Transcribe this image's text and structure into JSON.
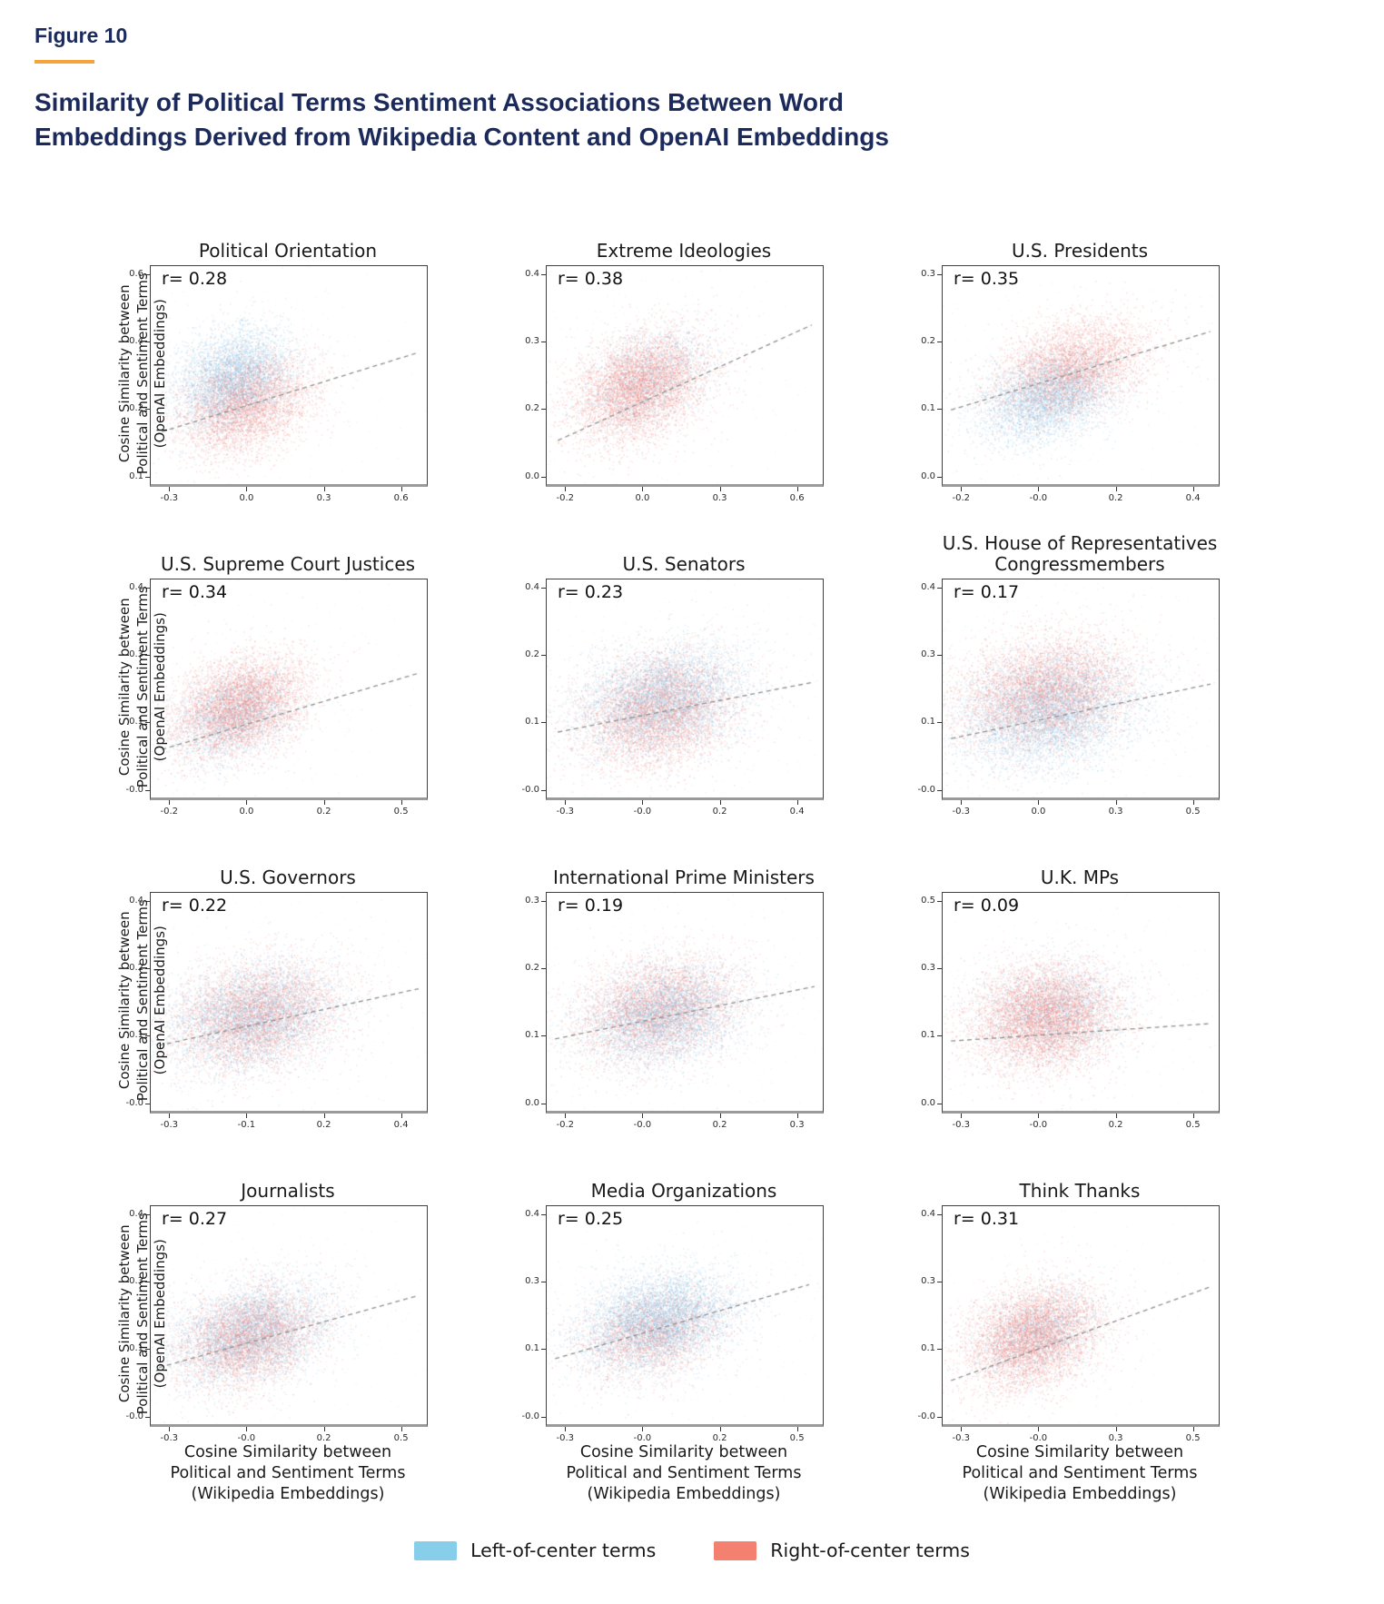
{
  "figure_label": "Figure 10",
  "title_lines": [
    "Similarity of Political Terms Sentiment Associations Between Word",
    "Embeddings Derived from Wikipedia Content and OpenAI Embeddings"
  ],
  "colors": {
    "accent_orange": "#f5a33c",
    "title_navy": "#1b2a5a",
    "left_blue": "#87CEEB",
    "right_red": "#F4806F",
    "trend_gray": "#8f8f8f",
    "point_blue": "125,186,228",
    "point_red": "241,126,117"
  },
  "legend": [
    {
      "label": "Left-of-center terms",
      "color_key": "left_blue"
    },
    {
      "label": "Right-of-center terms",
      "color_key": "right_red"
    }
  ],
  "shared_axes": {
    "y_label": "Cosine Similarity between\nPolitical and Sentiment Terms\n(OpenAI Embeddings)",
    "x_label": "Cosine Similarity between\nPolitical and Sentiment Terms\n(Wikipedia Embeddings)"
  },
  "chart_data": [
    {
      "type": "scatter",
      "title": "Political Orientation",
      "r": 0.28,
      "r_label": "r= 0.28",
      "x_ticks": [
        "-0.3",
        "0.0",
        "0.3",
        "0.6"
      ],
      "y_ticks": [
        "0.6",
        "0.4",
        "0.2",
        "0.1"
      ],
      "series": [
        {
          "name": "Left-of-center terms",
          "n": 4500,
          "cx": 0.3,
          "cy": 0.52,
          "sx": 0.105,
          "sy": 0.115
        },
        {
          "name": "Right-of-center terms",
          "n": 4500,
          "cx": 0.34,
          "cy": 0.63,
          "sx": 0.12,
          "sy": 0.115
        }
      ],
      "trend": {
        "x1": 0.04,
        "y1": 0.76,
        "x2": 0.96,
        "y2": 0.4
      }
    },
    {
      "type": "scatter",
      "title": "Extreme Ideologies",
      "r": 0.38,
      "r_label": "r= 0.38",
      "x_ticks": [
        "-0.2",
        "0.0",
        "0.3",
        "0.6"
      ],
      "y_ticks": [
        "0.4",
        "0.3",
        "0.2",
        "0.0"
      ],
      "series": [
        {
          "name": "Left-of-center terms",
          "n": 2000,
          "cx": 0.36,
          "cy": 0.52,
          "sx": 0.11,
          "sy": 0.11
        },
        {
          "name": "Right-of-center terms",
          "n": 5500,
          "cx": 0.34,
          "cy": 0.55,
          "sx": 0.12,
          "sy": 0.12
        }
      ],
      "trend": {
        "x1": 0.04,
        "y1": 0.8,
        "x2": 0.96,
        "y2": 0.27
      }
    },
    {
      "type": "scatter",
      "title": "U.S. Presidents",
      "r": 0.35,
      "r_label": "r= 0.35",
      "x_ticks": [
        "-0.2",
        "-0.0",
        "0.2",
        "0.4"
      ],
      "y_ticks": [
        "0.3",
        "0.2",
        "0.1",
        "0.0"
      ],
      "series": [
        {
          "name": "Left-of-center terms",
          "n": 4200,
          "cx": 0.38,
          "cy": 0.6,
          "sx": 0.12,
          "sy": 0.1
        },
        {
          "name": "Right-of-center terms",
          "n": 4500,
          "cx": 0.46,
          "cy": 0.47,
          "sx": 0.14,
          "sy": 0.11
        }
      ],
      "trend": {
        "x1": 0.03,
        "y1": 0.66,
        "x2": 0.97,
        "y2": 0.3
      }
    },
    {
      "type": "scatter",
      "title": "U.S. Supreme Court Justices",
      "r": 0.34,
      "r_label": "r= 0.34",
      "x_ticks": [
        "-0.2",
        "0.0",
        "0.2",
        "0.5"
      ],
      "y_ticks": [
        "0.4",
        "0.3",
        "0.1",
        "-0.0"
      ],
      "series": [
        {
          "name": "Left-of-center terms",
          "n": 2600,
          "cx": 0.3,
          "cy": 0.62,
          "sx": 0.11,
          "sy": 0.1
        },
        {
          "name": "Right-of-center terms",
          "n": 5200,
          "cx": 0.32,
          "cy": 0.58,
          "sx": 0.12,
          "sy": 0.11
        }
      ],
      "trend": {
        "x1": 0.04,
        "y1": 0.78,
        "x2": 0.97,
        "y2": 0.43
      }
    },
    {
      "type": "scatter",
      "title": "U.S. Senators",
      "r": 0.23,
      "r_label": "r= 0.23",
      "x_ticks": [
        "-0.3",
        "-0.0",
        "0.2",
        "0.4"
      ],
      "y_ticks": [
        "0.4",
        "0.2",
        "0.1",
        "-0.0"
      ],
      "series": [
        {
          "name": "Left-of-center terms",
          "n": 5200,
          "cx": 0.42,
          "cy": 0.55,
          "sx": 0.15,
          "sy": 0.12
        },
        {
          "name": "Right-of-center terms",
          "n": 5200,
          "cx": 0.4,
          "cy": 0.6,
          "sx": 0.14,
          "sy": 0.13
        }
      ],
      "trend": {
        "x1": 0.04,
        "y1": 0.7,
        "x2": 0.97,
        "y2": 0.47
      }
    },
    {
      "type": "scatter",
      "title": "U.S. House of Representatives\nCongressmembers",
      "r": 0.17,
      "r_label": "r= 0.17",
      "x_ticks": [
        "-0.3",
        "0.0",
        "0.3",
        "0.5"
      ],
      "y_ticks": [
        "0.4",
        "0.3",
        "0.1",
        "-0.0"
      ],
      "series": [
        {
          "name": "Left-of-center terms",
          "n": 5800,
          "cx": 0.38,
          "cy": 0.6,
          "sx": 0.16,
          "sy": 0.13
        },
        {
          "name": "Right-of-center terms",
          "n": 5800,
          "cx": 0.37,
          "cy": 0.52,
          "sx": 0.16,
          "sy": 0.13
        }
      ],
      "trend": {
        "x1": 0.03,
        "y1": 0.73,
        "x2": 0.97,
        "y2": 0.48
      }
    },
    {
      "type": "scatter",
      "title": "U.S. Governors",
      "r": 0.22,
      "r_label": "r= 0.22",
      "x_ticks": [
        "-0.3",
        "-0.1",
        "0.2",
        "0.4"
      ],
      "y_ticks": [
        "0.4",
        "0.2",
        "0.1",
        "-0.0"
      ],
      "series": [
        {
          "name": "Left-of-center terms",
          "n": 4600,
          "cx": 0.37,
          "cy": 0.57,
          "sx": 0.15,
          "sy": 0.12
        },
        {
          "name": "Right-of-center terms",
          "n": 5000,
          "cx": 0.38,
          "cy": 0.56,
          "sx": 0.15,
          "sy": 0.12
        }
      ],
      "trend": {
        "x1": 0.03,
        "y1": 0.7,
        "x2": 0.97,
        "y2": 0.44
      }
    },
    {
      "type": "scatter",
      "title": "International Prime Ministers",
      "r": 0.19,
      "r_label": "r= 0.19",
      "x_ticks": [
        "-0.2",
        "-0.0",
        "0.2",
        "0.3"
      ],
      "y_ticks": [
        "0.3",
        "0.2",
        "0.1",
        "0.0"
      ],
      "series": [
        {
          "name": "Left-of-center terms",
          "n": 4600,
          "cx": 0.42,
          "cy": 0.56,
          "sx": 0.14,
          "sy": 0.11
        },
        {
          "name": "Right-of-center terms",
          "n": 4600,
          "cx": 0.4,
          "cy": 0.53,
          "sx": 0.15,
          "sy": 0.12
        }
      ],
      "trend": {
        "x1": 0.03,
        "y1": 0.67,
        "x2": 0.97,
        "y2": 0.43
      }
    },
    {
      "type": "scatter",
      "title": "U.K. MPs",
      "r": 0.09,
      "r_label": "r= 0.09",
      "x_ticks": [
        "-0.3",
        "-0.0",
        "0.2",
        "0.5"
      ],
      "y_ticks": [
        "0.5",
        "0.3",
        "0.1",
        "0.0"
      ],
      "series": [
        {
          "name": "Left-of-center terms",
          "n": 2600,
          "cx": 0.4,
          "cy": 0.55,
          "sx": 0.13,
          "sy": 0.11
        },
        {
          "name": "Right-of-center terms",
          "n": 6200,
          "cx": 0.37,
          "cy": 0.57,
          "sx": 0.13,
          "sy": 0.12
        }
      ],
      "trend": {
        "x1": 0.03,
        "y1": 0.68,
        "x2": 0.97,
        "y2": 0.6
      }
    },
    {
      "type": "scatter",
      "title": "Journalists",
      "r": 0.27,
      "r_label": "r= 0.27",
      "x_ticks": [
        "-0.3",
        "-0.0",
        "0.2",
        "0.5"
      ],
      "y_ticks": [
        "0.4",
        "0.3",
        "0.1",
        "-0.0"
      ],
      "series": [
        {
          "name": "Left-of-center terms",
          "n": 4600,
          "cx": 0.36,
          "cy": 0.58,
          "sx": 0.14,
          "sy": 0.11
        },
        {
          "name": "Right-of-center terms",
          "n": 4600,
          "cx": 0.35,
          "cy": 0.6,
          "sx": 0.13,
          "sy": 0.11
        }
      ],
      "trend": {
        "x1": 0.03,
        "y1": 0.74,
        "x2": 0.97,
        "y2": 0.41
      }
    },
    {
      "type": "scatter",
      "title": "Media Organizations",
      "r": 0.25,
      "r_label": "r= 0.25",
      "x_ticks": [
        "-0.3",
        "-0.0",
        "0.2",
        "0.5"
      ],
      "y_ticks": [
        "0.4",
        "0.3",
        "0.1",
        "-0.0"
      ],
      "series": [
        {
          "name": "Left-of-center terms",
          "n": 5600,
          "cx": 0.4,
          "cy": 0.52,
          "sx": 0.14,
          "sy": 0.11
        },
        {
          "name": "Right-of-center terms",
          "n": 3000,
          "cx": 0.38,
          "cy": 0.58,
          "sx": 0.13,
          "sy": 0.1
        }
      ],
      "trend": {
        "x1": 0.03,
        "y1": 0.7,
        "x2": 0.95,
        "y2": 0.36
      }
    },
    {
      "type": "scatter",
      "title": "Think Thanks",
      "r": 0.31,
      "r_label": "r= 0.31",
      "x_ticks": [
        "-0.3",
        "-0.0",
        "0.3",
        "0.5"
      ],
      "y_ticks": [
        "0.4",
        "0.3",
        "0.1",
        "-0.0"
      ],
      "series": [
        {
          "name": "Left-of-center terms",
          "n": 2100,
          "cx": 0.34,
          "cy": 0.58,
          "sx": 0.11,
          "sy": 0.1
        },
        {
          "name": "Right-of-center terms",
          "n": 5600,
          "cx": 0.33,
          "cy": 0.6,
          "sx": 0.12,
          "sy": 0.115
        }
      ],
      "trend": {
        "x1": 0.03,
        "y1": 0.8,
        "x2": 0.97,
        "y2": 0.37
      }
    }
  ]
}
